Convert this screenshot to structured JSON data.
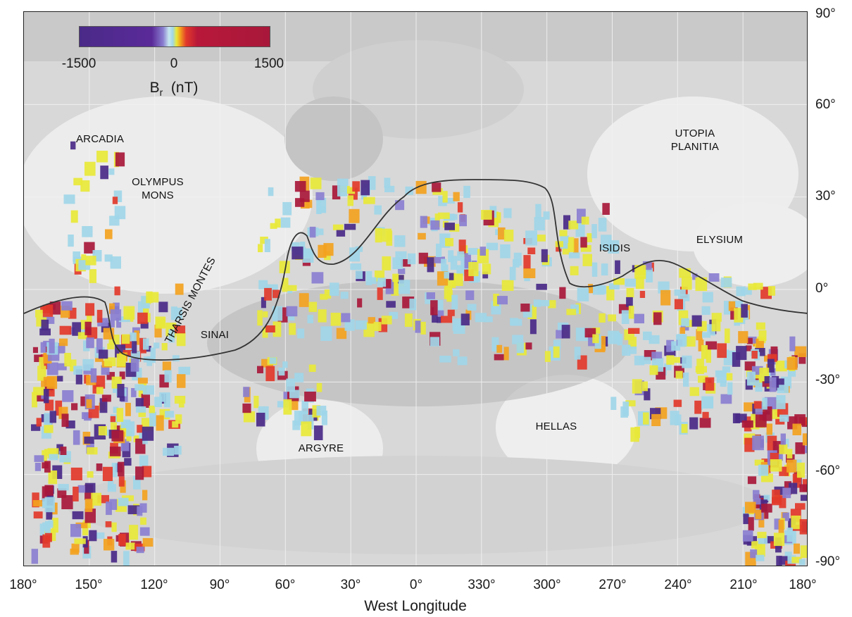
{
  "colorbar": {
    "ticks": [
      "-1500",
      "0",
      "1500"
    ],
    "symbol": "B",
    "symbol_subscript": "r",
    "unit": "(nT)",
    "range": [
      -1500,
      1500
    ],
    "colors": [
      "#4a2a88",
      "#8a7fd0",
      "#9fd6e8",
      "#e8e83a",
      "#f3a21f",
      "#e23a2a",
      "#a8183a"
    ]
  },
  "x_axis": {
    "title": "West Longitude",
    "ticks": [
      "180°",
      "150°",
      "120°",
      "90°",
      "60°",
      "30°",
      "0°",
      "330°",
      "300°",
      "270°",
      "240°",
      "210°",
      "180°"
    ]
  },
  "y_axis": {
    "ticks": [
      "90°",
      "60°",
      "30°",
      "0°",
      "-30°",
      "-60°",
      "-90°"
    ]
  },
  "regions": [
    {
      "id": "arcadia",
      "lines": [
        "ARCADIA"
      ]
    },
    {
      "id": "olympus",
      "lines": [
        "OLYMPUS",
        "MONS"
      ]
    },
    {
      "id": "tharsis",
      "lines": [
        "THARSIS MONTES"
      ]
    },
    {
      "id": "sinai",
      "lines": [
        "SINAI"
      ]
    },
    {
      "id": "argyre",
      "lines": [
        "ARGYRE"
      ]
    },
    {
      "id": "hellas",
      "lines": [
        "HELLAS"
      ]
    },
    {
      "id": "utopia",
      "lines": [
        "UTOPIA",
        "PLANITIA"
      ]
    },
    {
      "id": "isidis",
      "lines": [
        "ISIDIS"
      ]
    },
    {
      "id": "elysium",
      "lines": [
        "ELYSIUM"
      ]
    }
  ],
  "map": {
    "projection": "equirectangular",
    "lon_range_west": [
      180,
      -180
    ],
    "lat_range": [
      -90,
      90
    ],
    "basemap": "grayscale shaded relief",
    "grid": true,
    "dichotomy_boundary": true
  }
}
